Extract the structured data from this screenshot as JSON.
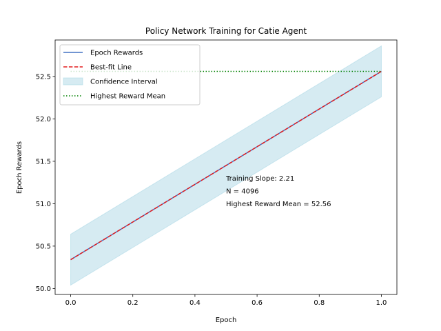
{
  "chart_data": {
    "type": "line",
    "title": "Policy Network Training for Catie Agent",
    "xlabel": "Epoch",
    "ylabel": "Epoch Rewards",
    "xlim": [
      -0.05,
      1.05
    ],
    "ylim": [
      49.93,
      52.93
    ],
    "x_ticks": [
      0.0,
      0.2,
      0.4,
      0.6,
      0.8,
      1.0
    ],
    "x_tick_labels": [
      "0.0",
      "0.2",
      "0.4",
      "0.6",
      "0.8",
      "1.0"
    ],
    "y_ticks": [
      50.0,
      50.5,
      51.0,
      51.5,
      52.0,
      52.5
    ],
    "y_tick_labels": [
      "50.0",
      "50.5",
      "51.0",
      "51.5",
      "52.0",
      "52.5"
    ],
    "grid": false,
    "legend_position": "top-left",
    "series": [
      {
        "name": "Epoch Rewards",
        "kind": "line",
        "color": "#4472c4",
        "x": [
          0.0,
          1.0
        ],
        "y": [
          50.34,
          52.56
        ]
      },
      {
        "name": "Best-fit Line",
        "kind": "dashed-line",
        "color": "#e41a1c",
        "x": [
          0.0,
          1.0
        ],
        "y": [
          50.34,
          52.56
        ]
      },
      {
        "name": "Confidence Interval",
        "kind": "band",
        "color": "#add8e6",
        "x": [
          0.0,
          1.0
        ],
        "lower": [
          50.04,
          52.26
        ],
        "upper": [
          50.64,
          52.86
        ]
      },
      {
        "name": "Highest Reward Mean",
        "kind": "dotted-hline",
        "color": "#008000",
        "x": [
          0.0,
          1.0
        ],
        "y": [
          52.56,
          52.56
        ]
      }
    ],
    "annotation": {
      "x": 0.5,
      "y": 51.0,
      "lines": [
        "Training Slope: 2.21",
        "N = 4096",
        "Highest Reward Mean = 52.56"
      ]
    }
  }
}
